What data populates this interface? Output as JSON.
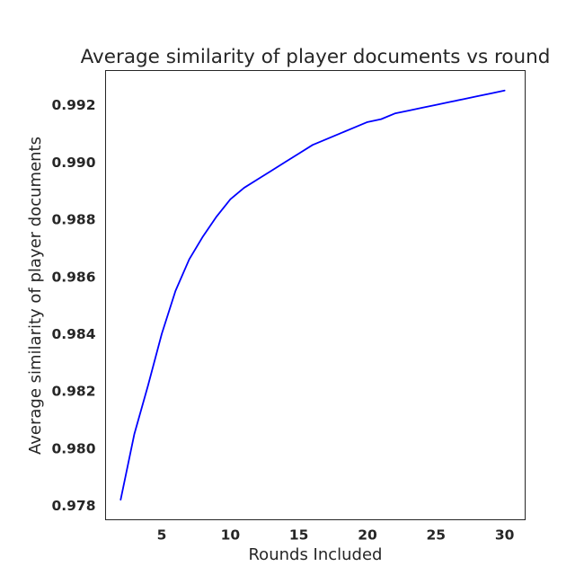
{
  "chart_data": {
    "type": "line",
    "title": "Average similarity of player documents vs round",
    "xlabel": "Rounds Included",
    "ylabel": "Average similarity of player documents",
    "xlim": [
      0.9,
      31.5
    ],
    "ylim": [
      0.9775,
      0.9932
    ],
    "xticks": [
      5,
      10,
      15,
      20,
      25,
      30
    ],
    "xtick_labels": [
      "5",
      "10",
      "15",
      "20",
      "25",
      "30"
    ],
    "yticks": [
      0.978,
      0.98,
      0.982,
      0.984,
      0.986,
      0.988,
      0.99,
      0.992
    ],
    "ytick_labels": [
      "0.978",
      "0.980",
      "0.982",
      "0.984",
      "0.986",
      "0.988",
      "0.990",
      "0.992"
    ],
    "grid": false,
    "series": [
      {
        "color": "#0000ff",
        "x": [
          2,
          3,
          4,
          5,
          6,
          7,
          8,
          9,
          10,
          11,
          12,
          13,
          14,
          15,
          16,
          17,
          18,
          19,
          20,
          21,
          22,
          23,
          24,
          25,
          26,
          27,
          28,
          29,
          30
        ],
        "y": [
          0.9782,
          0.9805,
          0.9822,
          0.984,
          0.9855,
          0.9866,
          0.9874,
          0.9881,
          0.9887,
          0.9891,
          0.9894,
          0.9897,
          0.99,
          0.9903,
          0.9906,
          0.9908,
          0.991,
          0.9912,
          0.9914,
          0.9915,
          0.9917,
          0.9918,
          0.9919,
          0.992,
          0.9921,
          0.9922,
          0.9923,
          0.9924,
          0.9925
        ]
      }
    ]
  }
}
